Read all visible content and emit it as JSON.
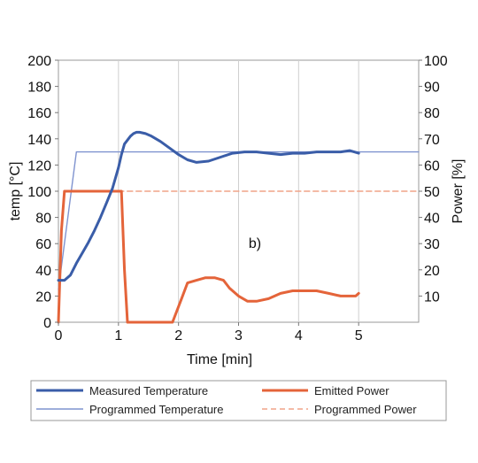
{
  "chart_data": {
    "type": "line",
    "xlabel": "Time [min]",
    "ylabel_left": "temp [°C]",
    "ylabel_right": "Power [%]",
    "annotation": "b)",
    "xlim": [
      0,
      6
    ],
    "x_ticks": [
      0,
      1,
      2,
      3,
      4,
      5
    ],
    "ylim_left": [
      0,
      200
    ],
    "y_ticks_left": [
      0,
      20,
      40,
      60,
      80,
      100,
      120,
      140,
      160,
      180,
      200
    ],
    "ylim_right": [
      0,
      100
    ],
    "y_ticks_right": [
      10,
      20,
      30,
      40,
      50,
      60,
      70,
      80,
      90,
      100
    ],
    "grid": "vertical",
    "legend_position": "bottom",
    "series": [
      {
        "name": "Measured Temperature",
        "axis": "left",
        "color": "#3a5da8",
        "style": "solid-thick",
        "x": [
          0,
          0.1,
          0.2,
          0.3,
          0.4,
          0.5,
          0.6,
          0.7,
          0.8,
          0.9,
          1.0,
          1.05,
          1.1,
          1.2,
          1.25,
          1.3,
          1.35,
          1.45,
          1.55,
          1.7,
          1.85,
          2.0,
          2.15,
          2.3,
          2.5,
          2.7,
          2.9,
          3.1,
          3.3,
          3.5,
          3.7,
          3.9,
          4.1,
          4.3,
          4.5,
          4.7,
          4.85,
          5.0
        ],
        "y": [
          32,
          32,
          36,
          45,
          53,
          61,
          70,
          80,
          91,
          102,
          118,
          128,
          136,
          142,
          144,
          145,
          145,
          144,
          142,
          138,
          133,
          128,
          124,
          122,
          123,
          126,
          129,
          130,
          130,
          129,
          128,
          129,
          129,
          130,
          130,
          130,
          131,
          129
        ]
      },
      {
        "name": "Programmed Temperature",
        "axis": "left",
        "color": "#7f93cf",
        "style": "solid-thin",
        "x": [
          0,
          0.3,
          6.0
        ],
        "y": [
          25,
          130,
          130
        ]
      },
      {
        "name": "Emitted Power",
        "axis": "right",
        "color": "#e4643a",
        "style": "solid-thick",
        "x": [
          0,
          0.05,
          0.1,
          1.0,
          1.05,
          1.1,
          1.15,
          1.9,
          1.95,
          2.05,
          2.15,
          2.3,
          2.45,
          2.6,
          2.75,
          2.85,
          3.0,
          3.15,
          3.3,
          3.5,
          3.7,
          3.9,
          4.1,
          4.3,
          4.5,
          4.7,
          4.85,
          4.95,
          5.0
        ],
        "y": [
          0,
          35,
          50,
          50,
          50,
          20,
          0,
          0,
          3,
          9,
          15,
          16,
          17,
          17,
          16,
          13,
          10,
          8,
          8,
          9,
          11,
          12,
          12,
          12,
          11,
          10,
          10,
          10,
          11
        ]
      },
      {
        "name": "Programmed Power",
        "axis": "right",
        "color": "#f0a488",
        "style": "dashed",
        "x": [
          1.0,
          6.0
        ],
        "y": [
          50,
          50
        ]
      }
    ]
  }
}
